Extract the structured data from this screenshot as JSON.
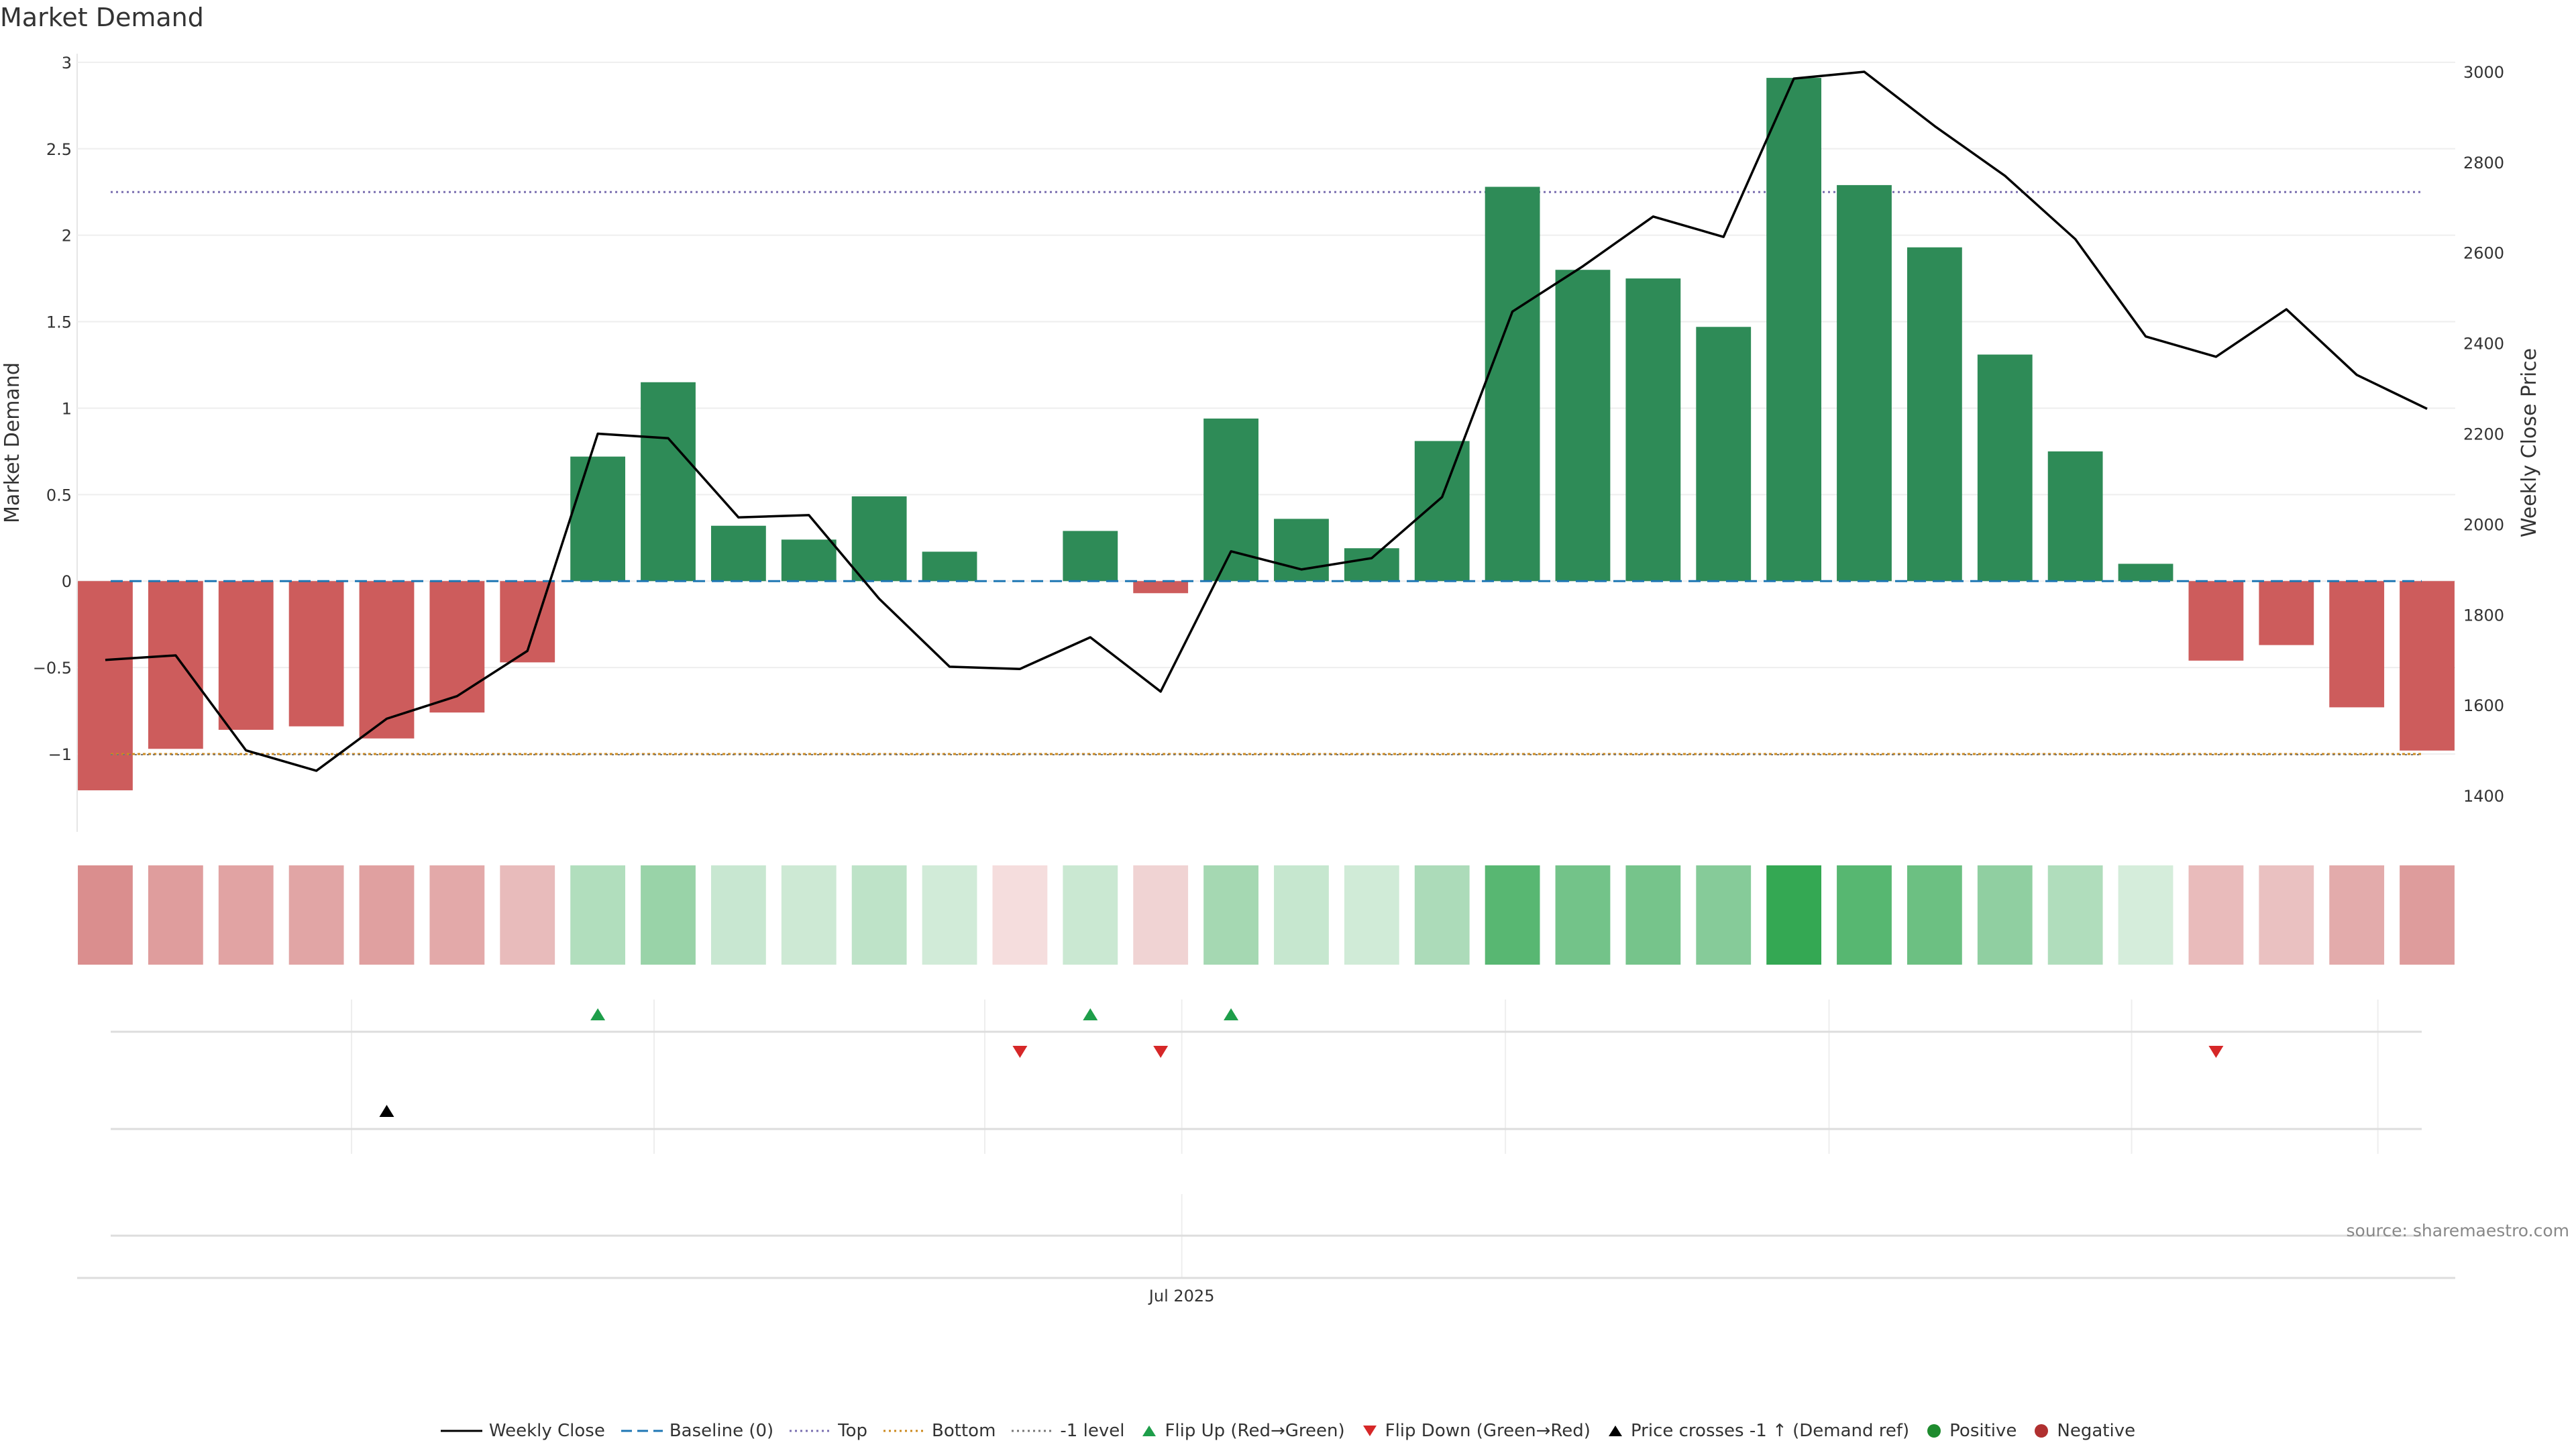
{
  "title": "Market Demand",
  "source": "source: sharemaestro.com",
  "colors": {
    "positive_bar": "#2e8b57",
    "negative_bar": "#cd5c5c",
    "price_line": "#000000",
    "baseline": "#1f77b4",
    "top_line": "#7a6fb0",
    "bottom_line": "#cc8a1f",
    "minus1_line": "#777777",
    "flip_up": "#1e9e4a",
    "flip_down": "#d62728",
    "cross_marker": "#000000",
    "positive_dot": "#1e8b2e",
    "negative_dot": "#b03030"
  },
  "chart_data": {
    "type": "bar",
    "title": "Market Demand",
    "ylabel": "Market Demand",
    "y2label": "Weekly Close Price",
    "ylim": [
      -1.45,
      3.05
    ],
    "y2lim": [
      1320,
      3040
    ],
    "yticks": [
      {
        "value": 3,
        "label": "3"
      },
      {
        "value": 2.5,
        "label": "2.5"
      },
      {
        "value": 2,
        "label": "2"
      },
      {
        "value": 1.5,
        "label": "1.5"
      },
      {
        "value": 1,
        "label": "1"
      },
      {
        "value": 0.5,
        "label": "0.5"
      },
      {
        "value": 0,
        "label": "0"
      },
      {
        "value": -0.5,
        "label": "−0.5"
      },
      {
        "value": -1,
        "label": "−1"
      }
    ],
    "y2ticks": [
      {
        "value": 3000,
        "label": "3000"
      },
      {
        "value": 2800,
        "label": "2800"
      },
      {
        "value": 2600,
        "label": "2600"
      },
      {
        "value": 2400,
        "label": "2400"
      },
      {
        "value": 2200,
        "label": "2200"
      },
      {
        "value": 2000,
        "label": "2000"
      },
      {
        "value": 1800,
        "label": "1800"
      },
      {
        "value": 1600,
        "label": "1600"
      },
      {
        "value": 1400,
        "label": "1400"
      }
    ],
    "xticks": [
      {
        "index": 15.3,
        "label": "Jul 2025"
      }
    ],
    "reference_lines": {
      "baseline": 0,
      "top": 2.25,
      "bottom": -1.0,
      "minus1_level": -1.0
    },
    "demand": [
      -1.21,
      -0.97,
      -0.86,
      -0.84,
      -0.91,
      -0.76,
      -0.47,
      0.72,
      1.15,
      0.32,
      0.24,
      0.49,
      0.17,
      0.0,
      0.29,
      -0.07,
      0.94,
      0.36,
      0.19,
      0.81,
      2.28,
      1.8,
      1.75,
      1.47,
      2.91,
      2.29,
      1.93,
      1.31,
      0.75,
      0.1,
      -0.46,
      -0.37,
      -0.73,
      -0.98
    ],
    "weekly_close": [
      1700,
      1710,
      1500,
      1455,
      1570,
      1620,
      1720,
      2200,
      2190,
      2015,
      2020,
      1835,
      1685,
      1680,
      1750,
      1630,
      1940,
      1900,
      1925,
      2060,
      2470,
      2570,
      2680,
      2635,
      2985,
      3000,
      2880,
      2770,
      2630,
      2415,
      2370,
      2475,
      2330,
      2255
    ],
    "flip_up_indices": [
      7,
      14,
      16
    ],
    "flip_down_indices": [
      13,
      15,
      30
    ],
    "price_cross_indices": [
      4
    ],
    "legend": [
      {
        "label": "Weekly Close",
        "kind": "line-solid",
        "color": "#000000"
      },
      {
        "label": "Baseline (0)",
        "kind": "line-dash",
        "color": "#1f77b4"
      },
      {
        "label": "Top",
        "kind": "line-dot",
        "color": "#7a6fb0"
      },
      {
        "label": "Bottom",
        "kind": "line-dot",
        "color": "#cc8a1f"
      },
      {
        "label": "-1 level",
        "kind": "line-dot",
        "color": "#777777"
      },
      {
        "label": "Flip Up (Red→Green)",
        "kind": "tri-up",
        "color": "#1e9e4a"
      },
      {
        "label": "Flip Down (Green→Red)",
        "kind": "tri-down",
        "color": "#d62728"
      },
      {
        "label": "Price crosses -1 ↑ (Demand ref)",
        "kind": "tri-up",
        "color": "#000000"
      },
      {
        "label": "Positive",
        "kind": "dot",
        "color": "#1e8b2e"
      },
      {
        "label": "Negative",
        "kind": "dot",
        "color": "#b03030"
      }
    ]
  }
}
